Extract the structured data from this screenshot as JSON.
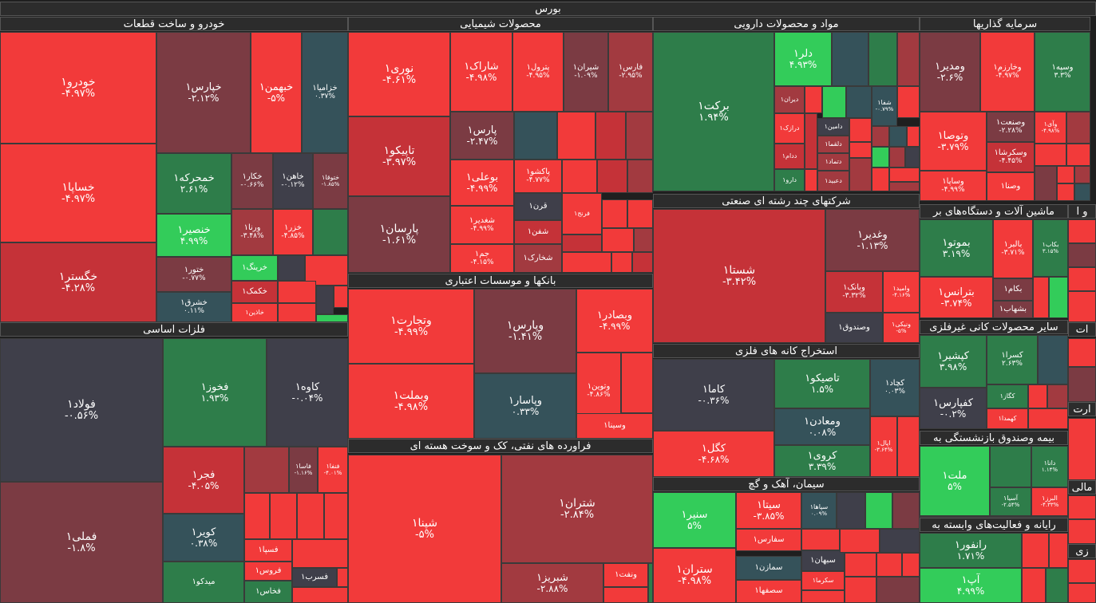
{
  "title": "بورس",
  "colors": {
    "R": "#f23a3a",
    "R2": "#e5393d",
    "D": "#7b3b43",
    "DR": "#a23a40",
    "DG": "#35525a",
    "GR": "#3f3f4a",
    "G": "#2e7d4a",
    "LG": "#33cc5a",
    "MR": "#c53238"
  },
  "sectors": [
    {
      "label": "خودرو و ساخت قطعات"
    },
    {
      "label": "محصولات شیمیایی"
    },
    {
      "label": "مواد و محصولات دارویی"
    },
    {
      "label": "سرمایه گذاریها"
    },
    {
      "label": "شرکتهای چند رشته ای صنعتی"
    },
    {
      "label": "ماشین آلات و دستگاه‌های بر"
    },
    {
      "label": "و ا"
    },
    {
      "label": "فلزات اساسی"
    },
    {
      "label": "بانکها و موسسات اعتباری"
    },
    {
      "label": "استخراج کانه های فلزی"
    },
    {
      "label": "سایر محصولات کانی غیرفلزی"
    },
    {
      "label": "ات"
    },
    {
      "label": "فراورده های نفتی، کک و سوخت هسته ای"
    },
    {
      "label": "سیمان، آهک و گچ"
    },
    {
      "label": "بیمه وصندوق بازنشستگی به"
    },
    {
      "label": "ارت"
    },
    {
      "label": "مالی"
    },
    {
      "label": "رایانه و فعالیت‌های وابسته به"
    },
    {
      "label": "زی"
    }
  ],
  "cells": [
    {
      "name": "خودرو۱",
      "pct": "-۴.۹۷%"
    },
    {
      "name": "خپارس۱",
      "pct": "-۲.۱۲%"
    },
    {
      "name": "خبهمن۱",
      "pct": "-۵%"
    },
    {
      "name": "خزامیا۱",
      "pct": "۰.۳۷%"
    },
    {
      "name": "خساپا۱",
      "pct": "-۴.۹۷%"
    },
    {
      "name": "خمحرکه۱",
      "pct": "۲.۶۱%"
    },
    {
      "name": "خکار۱",
      "pct": "-۰.۶۶%"
    },
    {
      "name": "خاهن۱",
      "pct": "-۰.۱۲%"
    },
    {
      "name": "ختوقا۱",
      "pct": "-۱.۸۵%"
    },
    {
      "name": "خنصیر۱",
      "pct": "۴.۹۹%"
    },
    {
      "name": "ورنا۱",
      "pct": "-۳.۴۸%"
    },
    {
      "name": "خزر۱",
      "pct": "-۴.۸۵%"
    },
    {
      "name": "خگستر۱",
      "pct": "-۴.۲۸%"
    },
    {
      "name": "ختور۱",
      "pct": "-۰.۷۷%"
    },
    {
      "name": "خرینگ۱",
      "pct": ""
    },
    {
      "name": "خکمک۱",
      "pct": ""
    },
    {
      "name": "خشرق۱",
      "pct": "۰.۱۱%"
    },
    {
      "name": "خاذین۱",
      "pct": ""
    },
    {
      "name": "نوری۱",
      "pct": "-۴.۶۱%"
    },
    {
      "name": "شاراک۱",
      "pct": "-۴.۹۸%"
    },
    {
      "name": "پترول۱",
      "pct": "-۴.۹۵%"
    },
    {
      "name": "شیران۱",
      "pct": "-۱.۰۹%"
    },
    {
      "name": "فارس۱",
      "pct": "-۲.۹۵%"
    },
    {
      "name": "تاپیکو۱",
      "pct": "-۳.۹۷%"
    },
    {
      "name": "پارس۱",
      "pct": "-۲.۴۷%"
    },
    {
      "name": "بوعلی۱",
      "pct": "-۴.۹۹%"
    },
    {
      "name": "پاکشو۱",
      "pct": "-۴.۷۷%"
    },
    {
      "name": "قرن۱",
      "pct": ""
    },
    {
      "name": "فرنج۱",
      "pct": ""
    },
    {
      "name": "پارسان۱",
      "pct": "-۱.۶۱%"
    },
    {
      "name": "شغدیر۱",
      "pct": "-۴.۹۹%"
    },
    {
      "name": "شفن۱",
      "pct": ""
    },
    {
      "name": "جم۱",
      "pct": "-۴.۱۵%"
    },
    {
      "name": "شخارک۱",
      "pct": ""
    },
    {
      "name": "برکت۱",
      "pct": "۱.۹۴%"
    },
    {
      "name": "دلر۱",
      "pct": "۴.۹۳%"
    },
    {
      "name": "دیران۱",
      "pct": ""
    },
    {
      "name": "شفا۱",
      "pct": "-۰.۷۹%"
    },
    {
      "name": "درازک۱",
      "pct": ""
    },
    {
      "name": "دامین۱",
      "pct": ""
    },
    {
      "name": "دلقما۱",
      "pct": ""
    },
    {
      "name": "ددام۱",
      "pct": ""
    },
    {
      "name": "دتماد۱",
      "pct": ""
    },
    {
      "name": "دارو۱",
      "pct": ""
    },
    {
      "name": "دعبید۱",
      "pct": ""
    },
    {
      "name": "ومدیر۱",
      "pct": "-۲.۶%"
    },
    {
      "name": "وخارزم۱",
      "pct": "-۴.۹۷%"
    },
    {
      "name": "وسپه۱",
      "pct": "۳.۳%"
    },
    {
      "name": "وتوصا۱",
      "pct": "-۳.۷۹%"
    },
    {
      "name": "وصنعت۱",
      "pct": "-۲.۲۸%"
    },
    {
      "name": "وآی۱",
      "pct": "-۴.۹۸%"
    },
    {
      "name": "وسکرشا۱",
      "pct": "-۴.۴۵%"
    },
    {
      "name": "وساپا۱",
      "pct": "-۴.۹۹%"
    },
    {
      "name": "وصنا۱",
      "pct": ""
    },
    {
      "name": "شستا۱",
      "pct": "-۳.۴۲%"
    },
    {
      "name": "وغدیر۱",
      "pct": "-۱.۱۳%"
    },
    {
      "name": "وبانک۱",
      "pct": "-۳.۳۲%"
    },
    {
      "name": "وامید۱",
      "pct": "-۴.۱۶%"
    },
    {
      "name": "وصندوق۱",
      "pct": ""
    },
    {
      "name": "ونیکی۱",
      "pct": "-۵%"
    },
    {
      "name": "بموتو۱",
      "pct": "۳.۱۹%"
    },
    {
      "name": "بالبر۱",
      "pct": "-۳.۷۱%"
    },
    {
      "name": "بکاب۱",
      "pct": "۳.۱۵%"
    },
    {
      "name": "بترانس۱",
      "pct": "-۳.۷۴%"
    },
    {
      "name": "بکام۱",
      "pct": ""
    },
    {
      "name": "بشهاب۱",
      "pct": ""
    },
    {
      "name": "فولاد۱",
      "pct": "-۰.۵۶%"
    },
    {
      "name": "فخوز۱",
      "pct": "۱.۹۳%"
    },
    {
      "name": "کاوه۱",
      "pct": "-۰.۰۴%"
    },
    {
      "name": "فجر۱",
      "pct": "-۴.۰۵%"
    },
    {
      "name": "فاسا۱",
      "pct": "-۱.۱۶%"
    },
    {
      "name": "فنفا۱",
      "pct": "-۴.۰۱%"
    },
    {
      "name": "کویر۱",
      "pct": "۰.۳۸%"
    },
    {
      "name": "فسپا۱",
      "pct": ""
    },
    {
      "name": "فروس۱",
      "pct": ""
    },
    {
      "name": "فملی۱",
      "pct": "-۱.۸%"
    },
    {
      "name": "میدکو۱",
      "pct": ""
    },
    {
      "name": "فخاس۱",
      "pct": ""
    },
    {
      "name": "فسرب۱",
      "pct": ""
    },
    {
      "name": "وتجارت۱",
      "pct": "-۴.۹۹%"
    },
    {
      "name": "وپارس۱",
      "pct": "-۱.۴۱%"
    },
    {
      "name": "وبصادر۱",
      "pct": "-۴.۹۹%"
    },
    {
      "name": "وتوین۱",
      "pct": "-۴.۸۶%"
    },
    {
      "name": "وبملت۱",
      "pct": "-۴.۹۸%"
    },
    {
      "name": "وپاسار۱",
      "pct": "۰.۳۳%"
    },
    {
      "name": "وسینا۱",
      "pct": ""
    },
    {
      "name": "کاما۱",
      "pct": "-۰.۳۶%"
    },
    {
      "name": "تاصیکو۱",
      "pct": "۱.۵%"
    },
    {
      "name": "کچاد۱",
      "pct": "۰.۰۳%"
    },
    {
      "name": "ومعادن۱",
      "pct": "۰.۰۸%"
    },
    {
      "name": "کگل۱",
      "pct": "-۴.۶۸%"
    },
    {
      "name": "کروی۱",
      "pct": "۳.۳۹%"
    },
    {
      "name": "اپال۱",
      "pct": "-۳.۶۴%"
    },
    {
      "name": "کپشیر۱",
      "pct": "۳.۹۸%"
    },
    {
      "name": "کسرا۱",
      "pct": "۲.۶۳%"
    },
    {
      "name": "کفپارس۱",
      "pct": "-۰.۲%"
    },
    {
      "name": "کگاز۱",
      "pct": ""
    },
    {
      "name": "کهمدا۱",
      "pct": ""
    },
    {
      "name": "شپنا۱",
      "pct": "-۵%"
    },
    {
      "name": "شتران۱",
      "pct": "-۲.۸۴%"
    },
    {
      "name": "شبریز۱",
      "pct": "-۲.۸۸%"
    },
    {
      "name": "ونفت۱",
      "pct": ""
    },
    {
      "name": "سنیر۱",
      "pct": "۵%"
    },
    {
      "name": "سیتا۱",
      "pct": "-۳.۸۵%"
    },
    {
      "name": "سپاها۱",
      "pct": "۰.۰۹%"
    },
    {
      "name": "سفارس۱",
      "pct": ""
    },
    {
      "name": "سبهان۱",
      "pct": ""
    },
    {
      "name": "ستران۱",
      "pct": "-۴.۹۸%"
    },
    {
      "name": "سمازن۱",
      "pct": ""
    },
    {
      "name": "سکرما۱",
      "pct": ""
    },
    {
      "name": "سصفها۱",
      "pct": ""
    },
    {
      "name": "ملت۱",
      "pct": "۵%"
    },
    {
      "name": "دانا۱",
      "pct": "۱.۱۴%"
    },
    {
      "name": "آسیا۱",
      "pct": "-۲.۵۴%"
    },
    {
      "name": "البرز۱",
      "pct": "-۴.۳۳%"
    },
    {
      "name": "رانفور۱",
      "pct": "۱.۷۱%"
    },
    {
      "name": "آپ۱",
      "pct": "۴.۹۹%"
    }
  ]
}
